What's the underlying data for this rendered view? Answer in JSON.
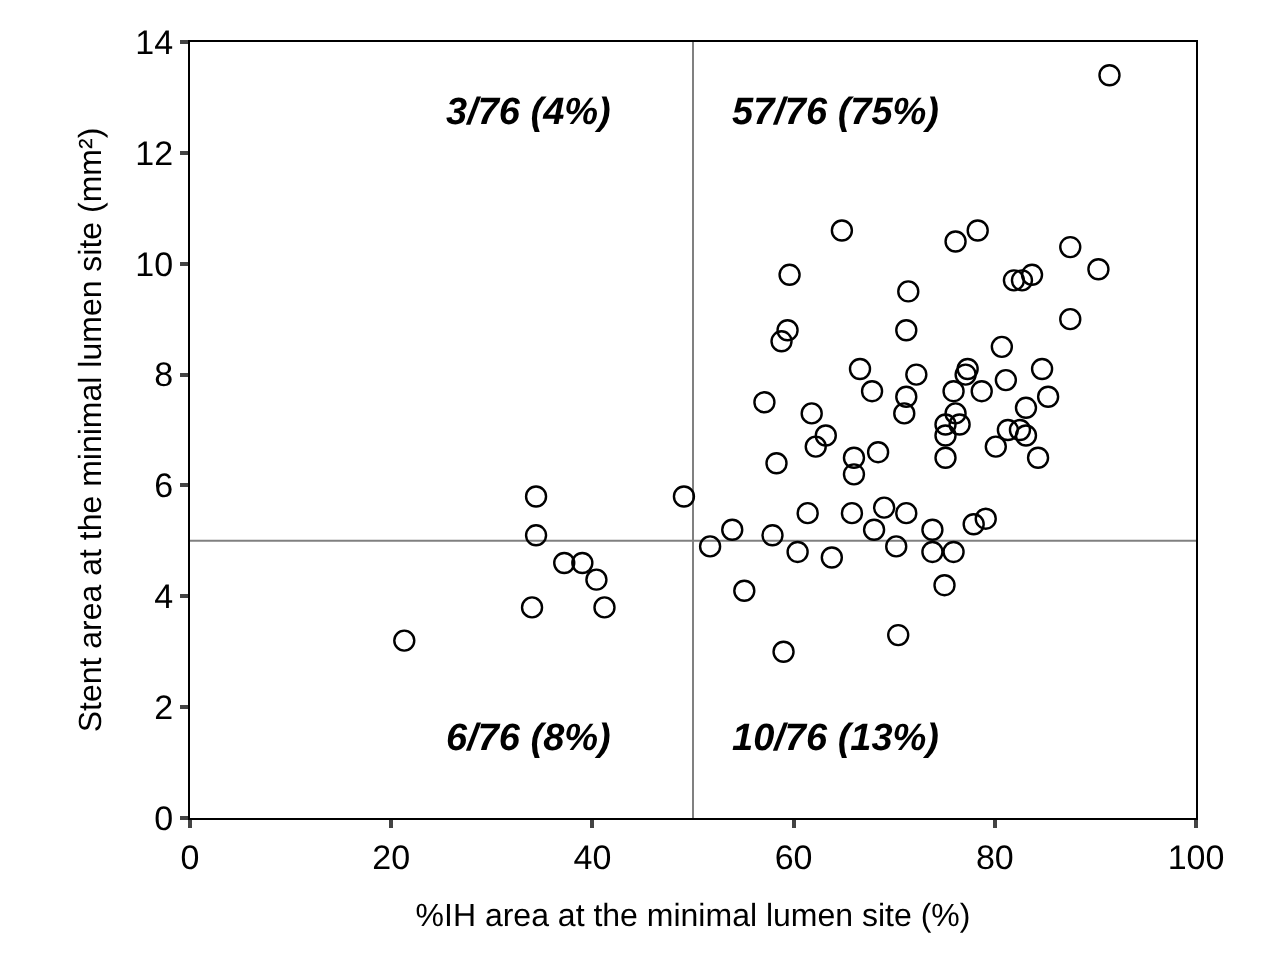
{
  "chart_data": {
    "type": "scatter",
    "xlabel": "%IH area at the minimal lumen site (%)",
    "ylabel": "Stent area at the minimal lumen site (mm²)",
    "xlim": [
      0,
      100
    ],
    "ylim": [
      0,
      14
    ],
    "xticks": [
      0,
      20,
      40,
      60,
      80,
      100
    ],
    "yticks": [
      0,
      2,
      4,
      6,
      8,
      10,
      12,
      14
    ],
    "grid": false,
    "marker": "circle",
    "ref_lines": [
      {
        "axis": "x",
        "value": 50,
        "color": "#808080"
      },
      {
        "axis": "y",
        "value": 5,
        "color": "#808080"
      }
    ],
    "annotations": [
      "3/76 (4%)",
      "57/76 (75%)",
      "6/76 (8%)",
      "10/76 (13%)"
    ],
    "series": [
      {
        "color": "#000000",
        "x": [
          21.3,
          34.0,
          41.2,
          37.2,
          39.0,
          40.4,
          34.4,
          34.4,
          49.1,
          51.7,
          53.9,
          55.1,
          57.9,
          59.0,
          60.4,
          61.4,
          63.8,
          65.8,
          68.0,
          69.0,
          70.2,
          70.4,
          71.2,
          73.8,
          73.8,
          75.0,
          75.9,
          77.9,
          79.1,
          64.8,
          76.1,
          78.3,
          87.5,
          90.3,
          59.6,
          71.4,
          81.9,
          82.7,
          83.7,
          87.5,
          59.4,
          58.8,
          71.2,
          80.7,
          66.6,
          67.8,
          72.2,
          77.3,
          77.1,
          84.7,
          81.1,
          78.7,
          75.9,
          57.1,
          71.2,
          71.0,
          85.3,
          83.1,
          61.8,
          63.2,
          62.2,
          75.1,
          76.1,
          76.5,
          75.1,
          81.3,
          82.5,
          83.1,
          80.1,
          84.3,
          75.1,
          58.3,
          66.0,
          66.0,
          68.4,
          91.4
        ],
        "values": [
          3.2,
          3.8,
          3.8,
          4.6,
          4.6,
          4.3,
          5.1,
          5.8,
          5.8,
          4.9,
          5.2,
          4.1,
          5.1,
          3.0,
          4.8,
          5.5,
          4.7,
          5.5,
          5.2,
          5.6,
          4.9,
          3.3,
          5.5,
          5.2,
          4.8,
          4.2,
          4.8,
          5.3,
          5.4,
          10.6,
          10.4,
          10.6,
          10.3,
          9.9,
          9.8,
          9.5,
          9.7,
          9.7,
          9.8,
          9.0,
          8.8,
          8.6,
          8.8,
          8.5,
          8.1,
          7.7,
          8.0,
          8.1,
          8.0,
          8.1,
          7.9,
          7.7,
          7.7,
          7.5,
          7.6,
          7.3,
          7.6,
          7.4,
          7.3,
          6.9,
          6.7,
          7.1,
          7.3,
          7.1,
          6.9,
          7.0,
          7.0,
          6.9,
          6.7,
          6.5,
          6.5,
          6.4,
          6.5,
          6.2,
          6.6,
          13.4
        ]
      }
    ]
  }
}
